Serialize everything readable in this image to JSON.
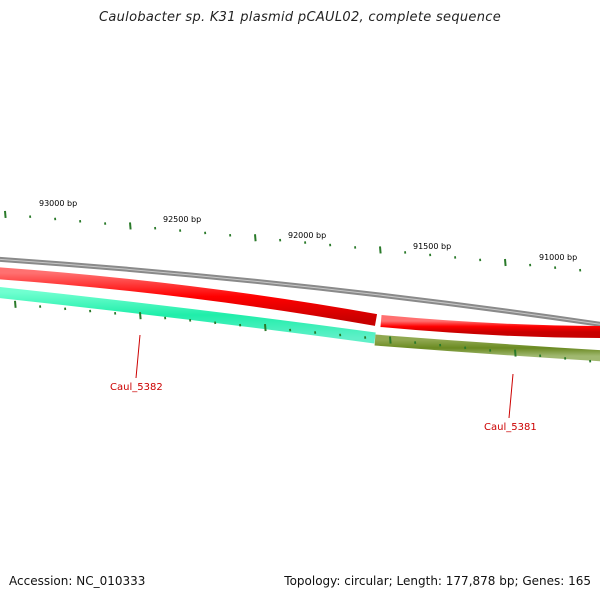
{
  "title": "Caulobacter sp. K31 plasmid pCAUL02, complete sequence",
  "ruler": {
    "labels": [
      {
        "bp": 93000,
        "text": "93000 bp"
      },
      {
        "bp": 92500,
        "text": "92500 bp"
      },
      {
        "bp": 92000,
        "text": "92000 bp"
      },
      {
        "bp": 91500,
        "text": "91500 bp"
      },
      {
        "bp": 91000,
        "text": "91000 bp"
      }
    ],
    "tick_color": "#2a7a2a"
  },
  "genes": [
    {
      "name": "Caul_5382",
      "strand": "minus",
      "color": "#22e0a0"
    },
    {
      "name": "Caul_5381",
      "strand": "minus",
      "color": "#6b8a22"
    }
  ],
  "tracks": {
    "backbone_color": "#888888",
    "forward_color": "#ee0000"
  },
  "footer": {
    "accession": "Accession: NC_010333",
    "summary": "Topology: circular; Length: 177,878 bp; Genes: 165"
  }
}
